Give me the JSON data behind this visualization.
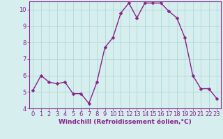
{
  "x": [
    0,
    1,
    2,
    3,
    4,
    5,
    6,
    7,
    8,
    9,
    10,
    11,
    12,
    13,
    14,
    15,
    16,
    17,
    18,
    19,
    20,
    21,
    22,
    23
  ],
  "y": [
    5.1,
    6.0,
    5.6,
    5.5,
    5.6,
    4.9,
    4.9,
    4.3,
    5.6,
    7.7,
    8.3,
    9.8,
    10.4,
    9.5,
    10.4,
    10.4,
    10.4,
    9.9,
    9.5,
    8.3,
    6.0,
    5.2,
    5.2,
    4.6
  ],
  "line_color": "#882288",
  "marker_color": "#882288",
  "bg_color": "#d6eeee",
  "grid_color": "#b0d8d8",
  "axis_color": "#882288",
  "xlabel": "Windchill (Refroidissement éolien,°C)",
  "ylim": [
    4,
    10.5
  ],
  "xlim_min": -0.5,
  "xlim_max": 23.5,
  "yticks": [
    4,
    5,
    6,
    7,
    8,
    9,
    10
  ],
  "xticks": [
    0,
    1,
    2,
    3,
    4,
    5,
    6,
    7,
    8,
    9,
    10,
    11,
    12,
    13,
    14,
    15,
    16,
    17,
    18,
    19,
    20,
    21,
    22,
    23
  ],
  "xlabel_fontsize": 6.5,
  "tick_fontsize": 6,
  "line_width": 1.0,
  "marker_size": 2.5
}
